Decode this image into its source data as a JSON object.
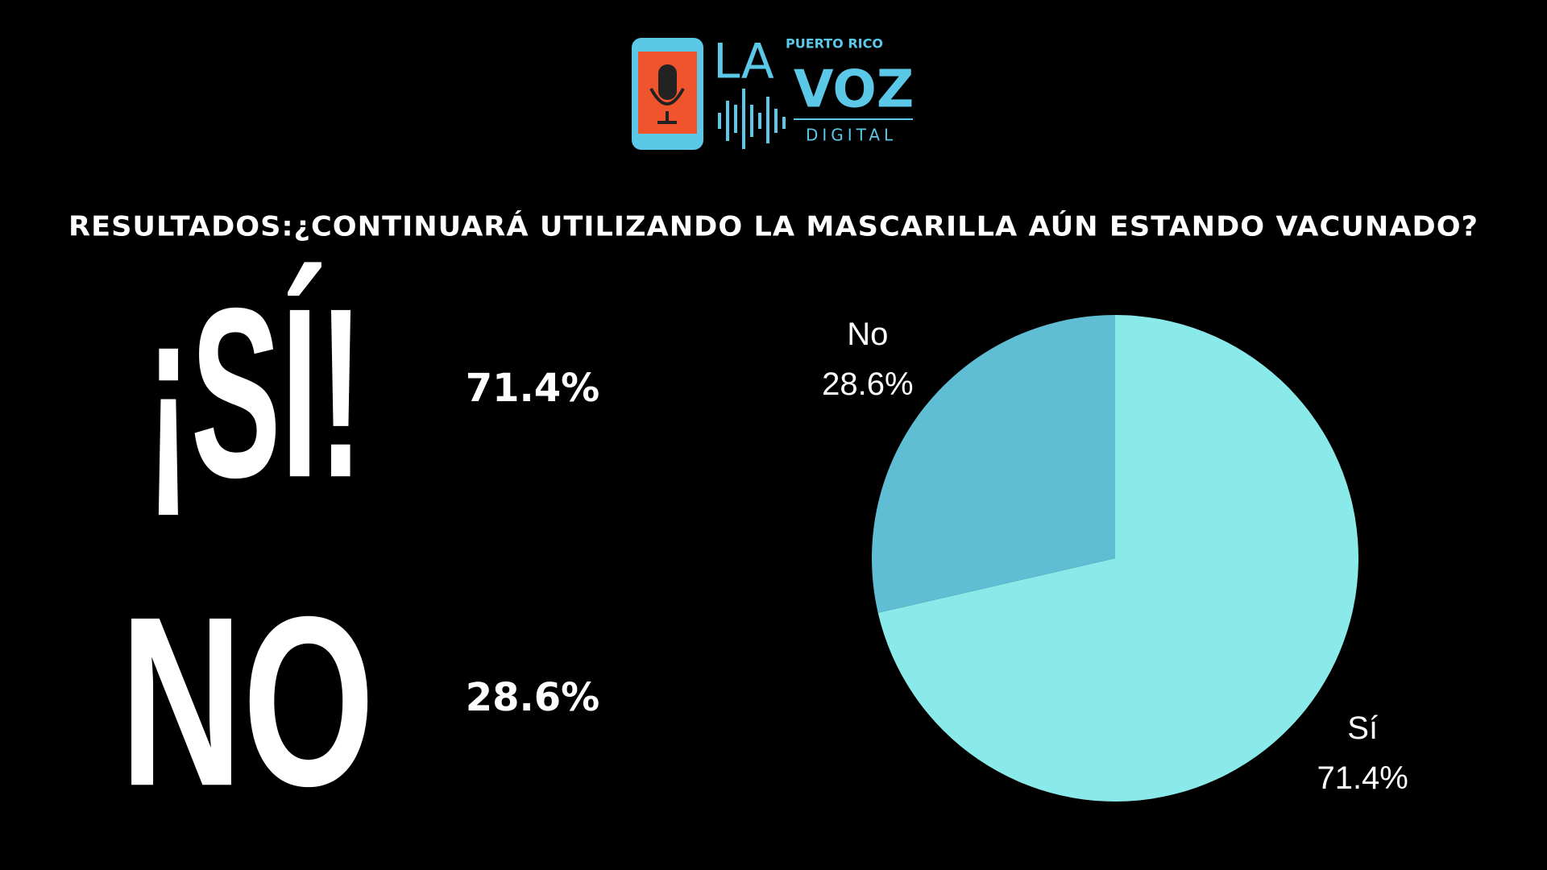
{
  "logo": {
    "top": "PUERTO RICO",
    "left": "LA",
    "right": "VOZ",
    "bottom": "DIGITAL"
  },
  "headline": "RESULTADOS:¿CONTINUARÁ UTILIZANDO LA MASCARILLA AÚN ESTANDO VACUNADO?",
  "answers": [
    "¡SÍ!",
    "NO"
  ],
  "chart_data": {
    "type": "pie",
    "categories": [
      "Sí",
      "No"
    ],
    "values": [
      71.4,
      28.6
    ],
    "value_labels": [
      "71.4%",
      "28.6%"
    ],
    "colors": [
      "#8ae9e9",
      "#5fbdd4"
    ]
  }
}
